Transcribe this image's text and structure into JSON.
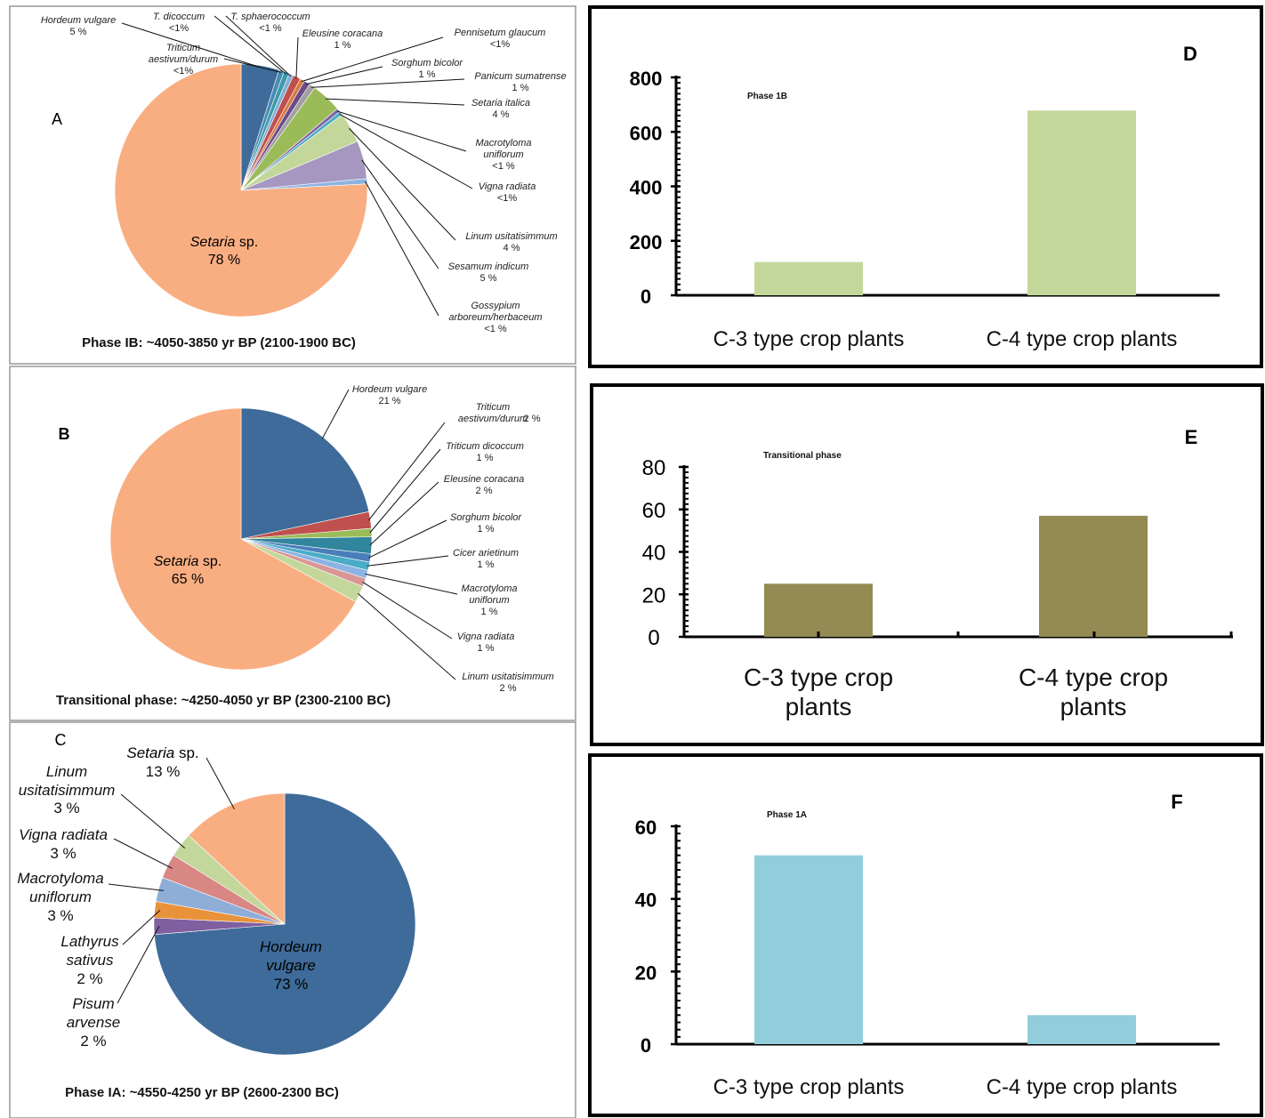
{
  "chart_data": [
    {
      "type": "pie",
      "panel_letter": "A",
      "caption": "Phase IB:  ~4050-3850 yr BP (2100-1900 BC)",
      "slices": [
        {
          "genus": "Hordeum vulgare",
          "pct": "5 %",
          "value": 5,
          "color": "#3e6b99"
        },
        {
          "genus": "Triticum aestivum/durum",
          "pct": "<1%",
          "value": 0.7,
          "color": "#4a8ab5"
        },
        {
          "genus": "T. dicoccum",
          "pct": "<1%",
          "value": 0.7,
          "color": "#3d9aa8"
        },
        {
          "genus": "T. sphaerococcum",
          "pct": "<1 %",
          "value": 0.6,
          "color": "#7fb0d8"
        },
        {
          "genus": "Eleusine coracana",
          "pct": "1 %",
          "value": 1,
          "color": "#c0504d"
        },
        {
          "genus": "Pennisetum glaucum",
          "pct": "<1%",
          "value": 0.6,
          "color": "#d97b40"
        },
        {
          "genus": "Sorghum bicolor",
          "pct": "1 %",
          "value": 0.8,
          "color": "#6b4a8a"
        },
        {
          "genus": "Panicum sumatrense",
          "pct": "1 %",
          "value": 0.8,
          "color": "#a0a0a0"
        },
        {
          "genus": "Setaria italica",
          "pct": "4 %",
          "value": 4,
          "color": "#9bbb59"
        },
        {
          "genus": "Macrotyloma uniflorum",
          "pct": "<1 %",
          "value": 0.5,
          "color": "#8064a2"
        },
        {
          "genus": "Vigna radiata",
          "pct": "<1%",
          "value": 0.5,
          "color": "#4bacc6"
        },
        {
          "genus": "Linum usitatisimmum",
          "pct": "4 %",
          "value": 4,
          "color": "#c4d79b"
        },
        {
          "genus": "Sesamum indicum",
          "pct": "5 %",
          "value": 5,
          "color": "#a597c0"
        },
        {
          "genus": "Gossypium arboreum/herbaceum",
          "pct": "<1 %",
          "value": 0.7,
          "color": "#8db3e2"
        },
        {
          "genus": "Setaria",
          "suffix": " sp.",
          "pct": "78 %",
          "value": 78,
          "color": "#f9ae82"
        }
      ]
    },
    {
      "type": "pie",
      "panel_letter": "B",
      "caption": "Transitional phase: ~4250-4050 yr BP (2300-2100 BC)",
      "slices": [
        {
          "genus": "Hordeum vulgare",
          "pct": "21 %",
          "value": 21,
          "color": "#3e6b99"
        },
        {
          "genus": "Triticum aestivum/durum",
          "pct": "2 %",
          "value": 2,
          "color": "#c0504d"
        },
        {
          "genus": "Triticum dicoccum",
          "pct": "1 %",
          "value": 1,
          "color": "#9bbb59"
        },
        {
          "genus": "Eleusine coracana",
          "pct": "2 %",
          "value": 2,
          "color": "#31859c"
        },
        {
          "genus": "Sorghum bicolor",
          "pct": "1 %",
          "value": 1,
          "color": "#4a7ebb"
        },
        {
          "genus": "Cicer arietinum",
          "pct": "1 %",
          "value": 1,
          "color": "#4bacc6"
        },
        {
          "genus": "Macrotyloma uniflorum",
          "pct": "1 %",
          "value": 1,
          "color": "#8db3e2"
        },
        {
          "genus": "Vigna radiata",
          "pct": "1 %",
          "value": 1,
          "color": "#d99694"
        },
        {
          "genus": "Linum usitatisimmum",
          "pct": "2 %",
          "value": 2,
          "color": "#c4d79b"
        },
        {
          "genus": "Setaria",
          "suffix": " sp.",
          "pct": "65 %",
          "value": 65,
          "color": "#f9ae82"
        }
      ]
    },
    {
      "type": "pie",
      "panel_letter": "C",
      "caption": "Phase IA: ~4550-4250 yr BP (2600-2300 BC)",
      "slices": [
        {
          "genus": "Hordeum vulgare",
          "pct": "73 %",
          "value": 73,
          "color": "#3e6b99"
        },
        {
          "genus": "Pisum arvense",
          "pct": "2 %",
          "value": 2,
          "color": "#7f5fa0"
        },
        {
          "genus": "Lathyrus sativus",
          "pct": "2 %",
          "value": 2,
          "color": "#e8923a"
        },
        {
          "genus": "Macrotyloma uniflorum",
          "pct": "3 %",
          "value": 3,
          "color": "#8eaed8"
        },
        {
          "genus": "Vigna radiata",
          "pct": "3 %",
          "value": 3,
          "color": "#d88785"
        },
        {
          "genus": "Linum usitatisimmum",
          "pct": "3 %",
          "value": 3,
          "color": "#c4d79b"
        },
        {
          "genus": "Setaria",
          "suffix": " sp.",
          "pct": "13 %",
          "value": 13,
          "color": "#f9ae82"
        }
      ]
    },
    {
      "type": "bar",
      "panel_letter": "D",
      "title": "Phase 1B",
      "categories": [
        "C-3 type crop plants",
        "C-4 type crop plants"
      ],
      "values": [
        122,
        678
      ],
      "ylim": [
        0,
        800
      ],
      "yticks": [
        0,
        200,
        400,
        600,
        800
      ],
      "color": "#c4d79b"
    },
    {
      "type": "bar",
      "panel_letter": "E",
      "title": "Transitional phase",
      "categories": [
        "C-3 type crop plants",
        "C-4 type crop plants"
      ],
      "values": [
        25,
        57
      ],
      "ylim": [
        0,
        80
      ],
      "yticks": [
        0,
        20,
        40,
        60,
        80
      ],
      "color": "#948a54"
    },
    {
      "type": "bar",
      "panel_letter": "F",
      "title": "Phase 1A",
      "categories": [
        "C-3 type crop plants",
        "C-4 type crop plants"
      ],
      "values": [
        52,
        8
      ],
      "ylim": [
        0,
        60
      ],
      "yticks": [
        0,
        20,
        40,
        60
      ],
      "color": "#92cddc"
    }
  ]
}
